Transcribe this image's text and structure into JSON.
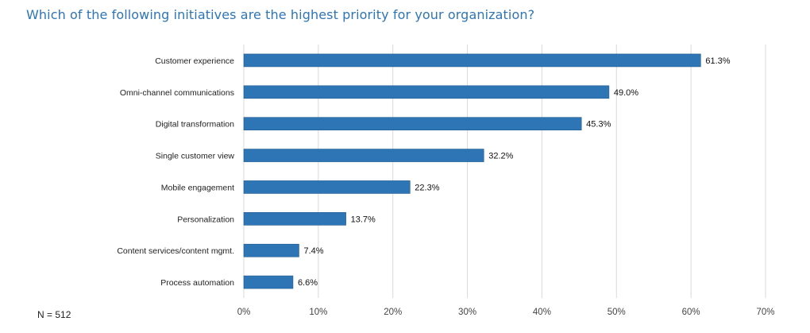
{
  "chart_data": {
    "type": "bar",
    "orientation": "horizontal",
    "title": "Which of the following initiatives are the highest priority for your organization?",
    "categories": [
      "Customer experience",
      "Omni-channel communications",
      "Digital transformation",
      "Single customer view",
      "Mobile engagement",
      "Personalization",
      "Content services/content mgmt.",
      "Process automation"
    ],
    "values": [
      61.3,
      49.0,
      45.3,
      32.2,
      22.3,
      13.7,
      7.4,
      6.6
    ],
    "value_labels": [
      "61.3%",
      "49.0%",
      "45.3%",
      "32.2%",
      "22.3%",
      "13.7%",
      "7.4%",
      "6.6%"
    ],
    "xlim": [
      0,
      70
    ],
    "x_ticks": [
      0,
      10,
      20,
      30,
      40,
      50,
      60,
      70
    ],
    "x_tick_labels": [
      "0%",
      "10%",
      "20%",
      "30%",
      "40%",
      "50%",
      "60%",
      "70%"
    ],
    "xlabel": "",
    "ylabel": "",
    "grid": true,
    "legend": "none",
    "bar_color": "#2e75b6",
    "grid_color": "#d9d9d9"
  },
  "footnote": "N = 512"
}
